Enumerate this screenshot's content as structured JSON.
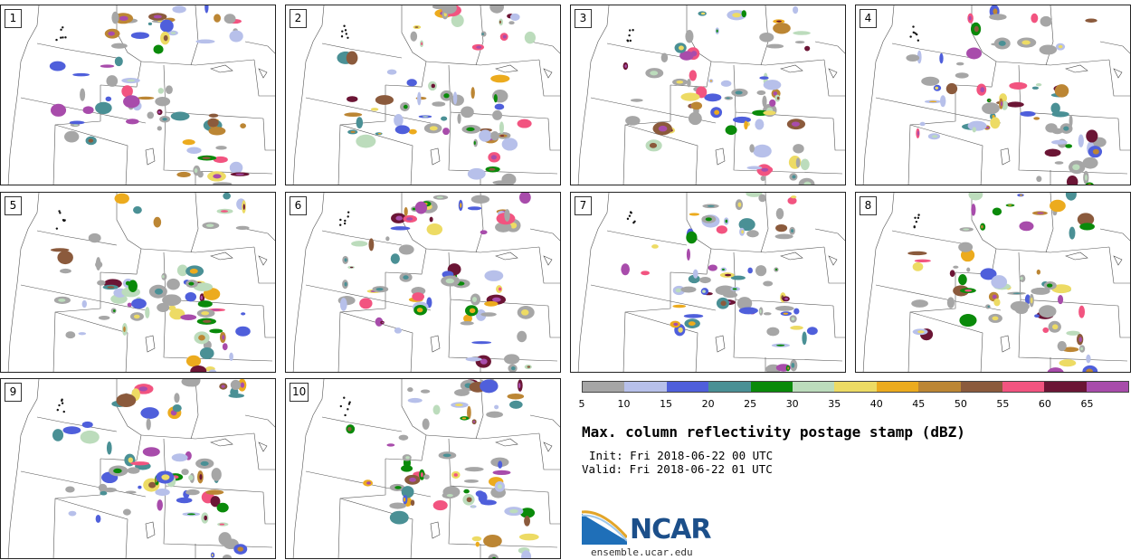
{
  "panels": [
    {
      "label": "1"
    },
    {
      "label": "2"
    },
    {
      "label": "3"
    },
    {
      "label": "4"
    },
    {
      "label": "5"
    },
    {
      "label": "6"
    },
    {
      "label": "7"
    },
    {
      "label": "8"
    },
    {
      "label": "9"
    },
    {
      "label": "10"
    }
  ],
  "colorbar": {
    "colors": [
      "#a6a6a6",
      "#b7c0ea",
      "#4f5fdb",
      "#4a9095",
      "#0a8a0a",
      "#bcdcbc",
      "#eddb64",
      "#ecab1e",
      "#bc8634",
      "#8b5a3c",
      "#f25480",
      "#6b1535",
      "#a84cab"
    ],
    "ticks": [
      "5",
      "10",
      "15",
      "20",
      "25",
      "30",
      "35",
      "40",
      "45",
      "50",
      "55",
      "60",
      "65"
    ]
  },
  "title": "Max. column reflectivity postage stamp (dBZ)",
  "init": "Init: Fri 2018-06-22 00 UTC",
  "valid": "Valid: Fri 2018-06-22 01 UTC",
  "logo": {
    "text": "NCAR",
    "url": "ensemble.ucar.edu"
  }
}
